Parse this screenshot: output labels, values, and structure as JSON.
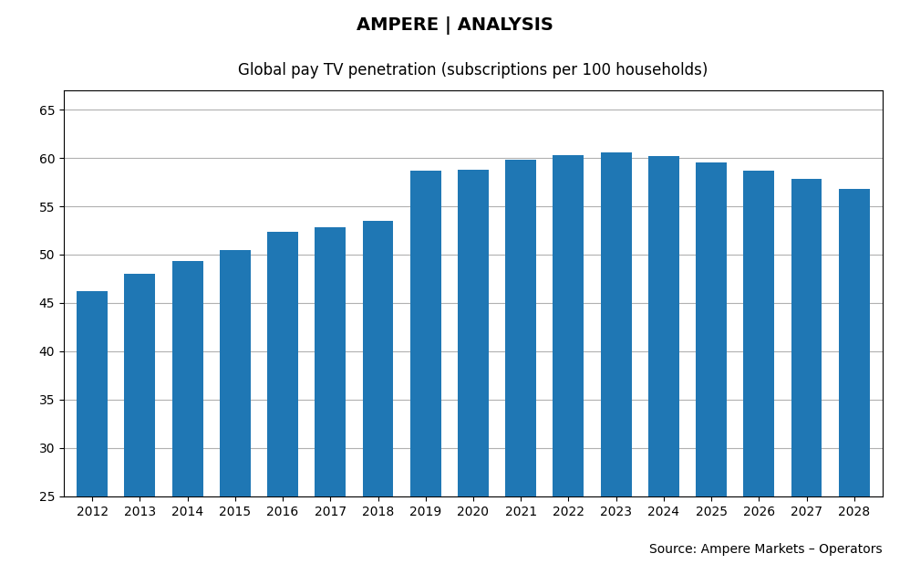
{
  "chart_data": {
    "type": "bar",
    "title": "Global pay TV penetration (subscriptions per 100 households)",
    "categories": [
      "2012",
      "2013",
      "2014",
      "2015",
      "2016",
      "2017",
      "2018",
      "2019",
      "2020",
      "2021",
      "2022",
      "2023",
      "2024",
      "2025",
      "2026",
      "2027",
      "2028"
    ],
    "values": [
      46.2,
      48.0,
      49.3,
      50.5,
      52.4,
      52.8,
      53.5,
      58.7,
      58.8,
      59.8,
      60.3,
      60.6,
      60.2,
      59.5,
      58.7,
      57.8,
      56.8
    ],
    "ylim": [
      25,
      67
    ],
    "yticks": [
      25,
      30,
      35,
      40,
      45,
      50,
      55,
      60,
      65
    ],
    "grid": true,
    "annotations": [
      "AMPERE | ANALYSIS",
      "Source: Ampere Markets – Operators"
    ]
  }
}
